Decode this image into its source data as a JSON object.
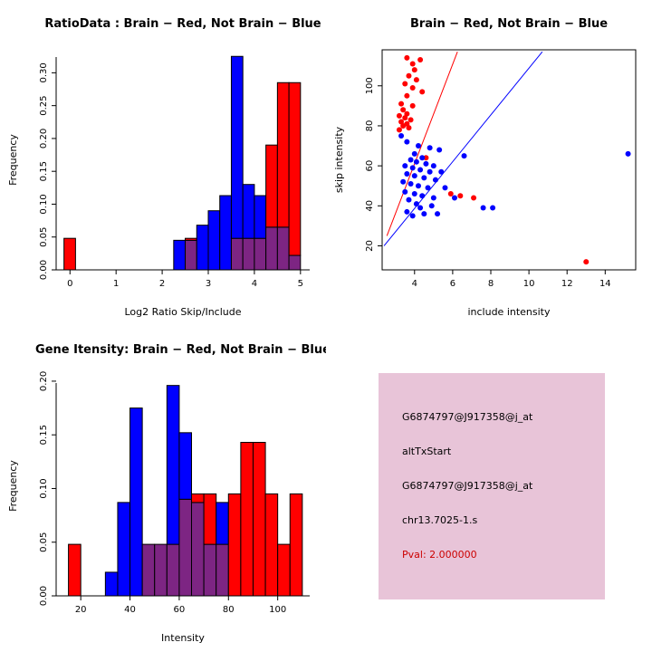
{
  "colors": {
    "red": "#FF0000",
    "blue": "#0000FF",
    "overlap": "#7D2583",
    "axis": "#000000",
    "info_bg": "#E8C4D8",
    "pval_red": "#CC0000"
  },
  "chart_data": [
    {
      "type": "bar",
      "title": "RatioData : Brain − Red, Not Brain − Blue",
      "xlabel": "Log2 Ratio Skip/Include",
      "ylabel": "Frequency",
      "xlim": [
        -0.3,
        5.2
      ],
      "ylim": [
        0,
        0.335
      ],
      "xticks": [
        0,
        1,
        2,
        3,
        4,
        5
      ],
      "xtick_labels": [
        "0",
        "1",
        "2",
        "3",
        "4",
        "5"
      ],
      "yticks": [
        0.0,
        0.05,
        0.1,
        0.15,
        0.2,
        0.25,
        0.3
      ],
      "ytick_labels": [
        "0.00",
        "0.05",
        "0.10",
        "0.15",
        "0.20",
        "0.25",
        "0.30"
      ],
      "bin_width": 0.25,
      "bins": [
        {
          "x": -0.13,
          "red": 0.048,
          "blue": 0
        },
        {
          "x": 2.25,
          "red": 0,
          "blue": 0.045
        },
        {
          "x": 2.5,
          "red": 0.048,
          "blue": 0.045
        },
        {
          "x": 2.75,
          "red": 0,
          "blue": 0.068
        },
        {
          "x": 3.0,
          "red": 0,
          "blue": 0.09
        },
        {
          "x": 3.25,
          "red": 0,
          "blue": 0.113
        },
        {
          "x": 3.5,
          "red": 0.048,
          "blue": 0.325
        },
        {
          "x": 3.75,
          "red": 0.048,
          "blue": 0.13
        },
        {
          "x": 4.0,
          "red": 0.048,
          "blue": 0.113
        },
        {
          "x": 4.25,
          "red": 0.19,
          "blue": 0.065
        },
        {
          "x": 4.5,
          "red": 0.285,
          "blue": 0.065
        },
        {
          "x": 4.75,
          "red": 0.285,
          "blue": 0.022
        }
      ]
    },
    {
      "type": "scatter",
      "title": "Brain − Red, Not Brain − Blue",
      "xlabel": "include intensity",
      "ylabel": "skip intensity",
      "xlim": [
        2.3,
        15.6
      ],
      "ylim": [
        8,
        118
      ],
      "xticks": [
        4,
        6,
        8,
        10,
        12,
        14
      ],
      "xtick_labels": [
        "4",
        "6",
        "8",
        "10",
        "12",
        "14"
      ],
      "yticks": [
        20,
        40,
        60,
        80,
        100
      ],
      "ytick_labels": [
        "20",
        "40",
        "60",
        "80",
        "100"
      ],
      "series": [
        {
          "name": "brain",
          "color": "red",
          "points": [
            [
              3.6,
              114
            ],
            [
              4.3,
              113
            ],
            [
              3.9,
              111
            ],
            [
              4.0,
              108
            ],
            [
              3.7,
              105
            ],
            [
              4.1,
              103
            ],
            [
              3.5,
              101
            ],
            [
              3.9,
              99
            ],
            [
              4.4,
              97
            ],
            [
              3.6,
              95
            ],
            [
              3.3,
              91
            ],
            [
              3.9,
              90
            ],
            [
              3.4,
              88
            ],
            [
              3.6,
              86
            ],
            [
              3.2,
              85
            ],
            [
              3.5,
              84
            ],
            [
              3.8,
              83
            ],
            [
              3.3,
              82
            ],
            [
              3.6,
              81
            ],
            [
              3.4,
              80
            ],
            [
              3.7,
              79
            ],
            [
              3.2,
              78
            ],
            [
              4.6,
              64
            ],
            [
              5.9,
              46
            ],
            [
              6.4,
              45
            ],
            [
              7.1,
              44
            ],
            [
              13.0,
              12
            ]
          ]
        },
        {
          "name": "not-brain",
          "color": "blue",
          "points": [
            [
              3.3,
              75
            ],
            [
              3.6,
              72
            ],
            [
              4.2,
              70
            ],
            [
              4.8,
              69
            ],
            [
              5.3,
              68
            ],
            [
              4.0,
              66
            ],
            [
              15.2,
              66
            ],
            [
              6.6,
              65
            ],
            [
              4.4,
              64
            ],
            [
              3.8,
              63
            ],
            [
              4.1,
              62
            ],
            [
              4.6,
              61
            ],
            [
              5.0,
              60
            ],
            [
              3.5,
              60
            ],
            [
              3.9,
              59
            ],
            [
              4.3,
              58
            ],
            [
              4.8,
              57
            ],
            [
              5.4,
              57
            ],
            [
              3.6,
              56
            ],
            [
              4.0,
              55
            ],
            [
              4.5,
              54
            ],
            [
              5.1,
              53
            ],
            [
              3.4,
              52
            ],
            [
              3.8,
              51
            ],
            [
              4.2,
              50
            ],
            [
              4.7,
              49
            ],
            [
              5.6,
              49
            ],
            [
              3.5,
              47
            ],
            [
              4.0,
              46
            ],
            [
              4.4,
              45
            ],
            [
              6.1,
              44
            ],
            [
              5.0,
              44
            ],
            [
              3.7,
              43
            ],
            [
              4.1,
              41
            ],
            [
              4.9,
              40
            ],
            [
              4.3,
              39
            ],
            [
              7.6,
              39
            ],
            [
              8.1,
              39
            ],
            [
              3.6,
              37
            ],
            [
              4.5,
              36
            ],
            [
              5.2,
              36
            ],
            [
              3.9,
              35
            ]
          ]
        }
      ],
      "lines": [
        {
          "color": "red",
          "x1": 2.55,
          "y1": 25,
          "x2": 6.25,
          "y2": 117
        },
        {
          "color": "blue",
          "x1": 2.4,
          "y1": 20,
          "x2": 10.7,
          "y2": 117
        }
      ]
    },
    {
      "type": "bar",
      "title": "Gene Itensity: Brain − Red, Not Brain − Blue",
      "xlabel": "Intensity",
      "ylabel": "Frequency",
      "xlim": [
        10,
        113
      ],
      "ylim": [
        0,
        0.205
      ],
      "xticks": [
        20,
        40,
        60,
        80,
        100
      ],
      "xtick_labels": [
        "20",
        "40",
        "60",
        "80",
        "100"
      ],
      "yticks": [
        0.0,
        0.05,
        0.1,
        0.15,
        0.2
      ],
      "ytick_labels": [
        "0.00",
        "0.05",
        "0.10",
        "0.15",
        "0.20"
      ],
      "bin_width": 5,
      "bins": [
        {
          "x": 15,
          "red": 0.048,
          "blue": 0
        },
        {
          "x": 30,
          "red": 0,
          "blue": 0.022
        },
        {
          "x": 35,
          "red": 0,
          "blue": 0.087
        },
        {
          "x": 40,
          "red": 0,
          "blue": 0.175
        },
        {
          "x": 45,
          "red": 0.048,
          "blue": 0.048
        },
        {
          "x": 50,
          "red": 0.048,
          "blue": 0.048
        },
        {
          "x": 55,
          "red": 0.048,
          "blue": 0.196
        },
        {
          "x": 60,
          "red": 0.09,
          "blue": 0.152
        },
        {
          "x": 65,
          "red": 0.095,
          "blue": 0.087
        },
        {
          "x": 70,
          "red": 0.095,
          "blue": 0.048
        },
        {
          "x": 75,
          "red": 0.048,
          "blue": 0.087
        },
        {
          "x": 80,
          "red": 0.095,
          "blue": 0
        },
        {
          "x": 85,
          "red": 0.143,
          "blue": 0
        },
        {
          "x": 90,
          "red": 0.143,
          "blue": 0
        },
        {
          "x": 95,
          "red": 0.095,
          "blue": 0
        },
        {
          "x": 100,
          "red": 0.048,
          "blue": 0
        },
        {
          "x": 105,
          "red": 0.095,
          "blue": 0
        }
      ]
    }
  ],
  "info_panel": {
    "lines": [
      "G6874797@J917358@j_at",
      "altTxStart",
      "G6874797@J917358@j_at",
      "chr13.7025-1.s"
    ],
    "pval": "Pval: 2.000000"
  }
}
